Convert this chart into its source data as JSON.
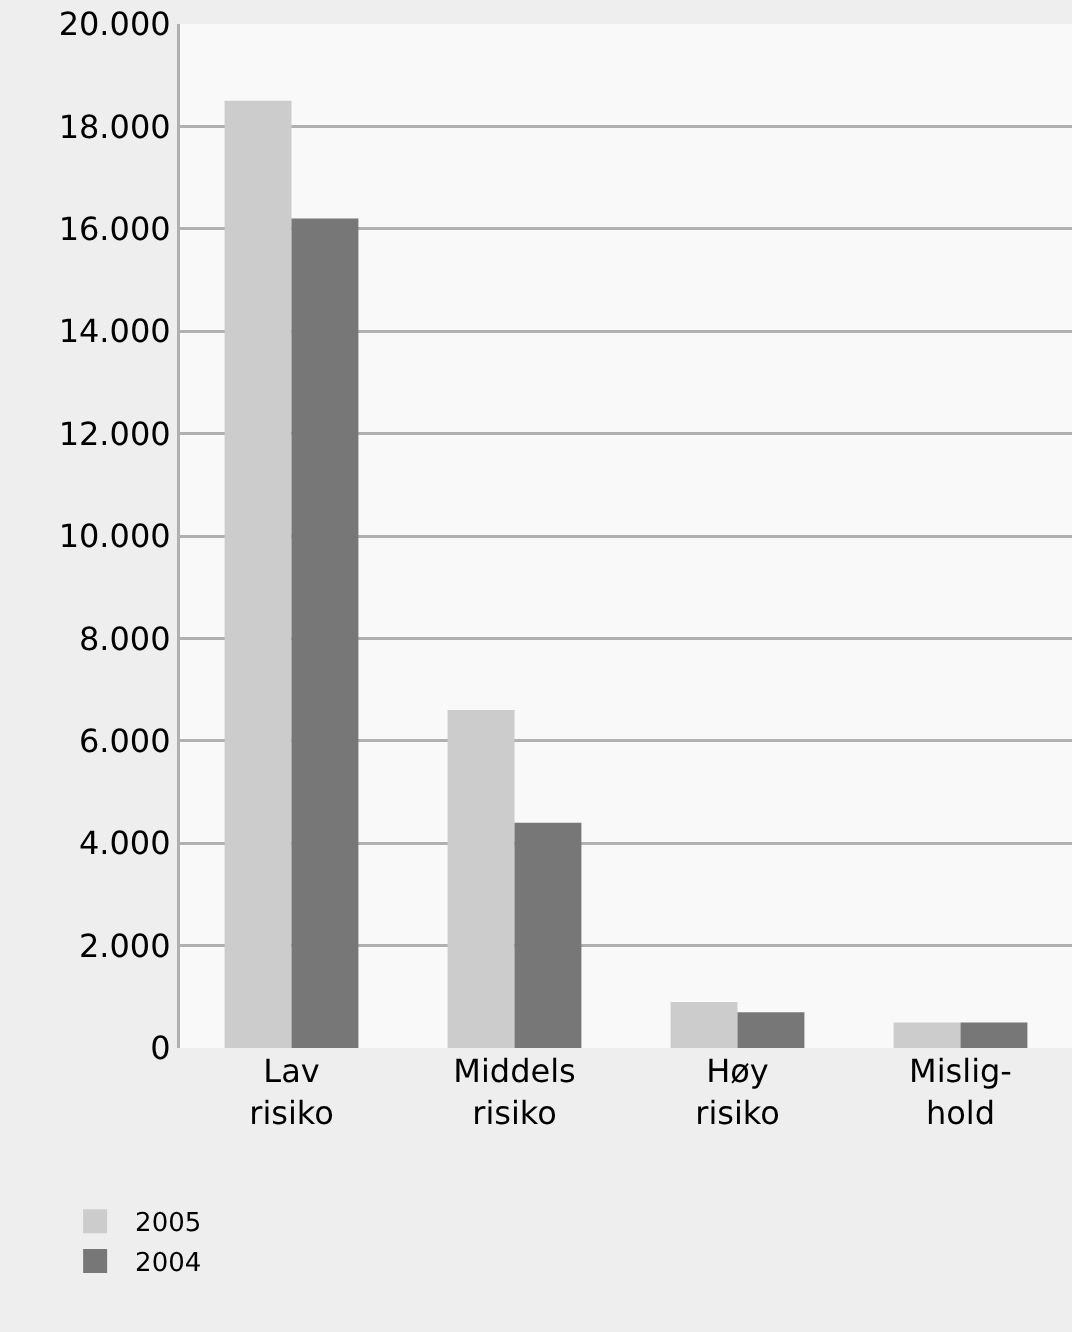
{
  "chart_data": {
    "type": "bar",
    "categories": [
      "Lav\nrisiko",
      "Middels\nrisiko",
      "Høy\nrisiko",
      "Mislig-\nhold"
    ],
    "series": [
      {
        "name": "2005",
        "color": "#cccccc",
        "values": [
          18500,
          6600,
          900,
          500
        ]
      },
      {
        "name": "2004",
        "color": "#777777",
        "values": [
          16200,
          4400,
          700,
          500
        ]
      }
    ],
    "ylim": [
      0,
      20000
    ],
    "yticks": [
      0,
      {
        "value": 2000,
        "label": "2.000"
      },
      {
        "value": 4000,
        "label": "4.000"
      },
      {
        "value": 6000,
        "label": "6.000"
      },
      {
        "value": 8000,
        "label": "8.000"
      },
      {
        "value": 10000,
        "label": "10.000"
      },
      {
        "value": 12000,
        "label": "12.000"
      },
      {
        "value": 14000,
        "label": "14.000"
      },
      {
        "value": 16000,
        "label": "16.000"
      },
      {
        "value": 18000,
        "label": "18.000"
      },
      {
        "value": 20000,
        "label": "20.000"
      }
    ],
    "grid": "y",
    "legend": "bottom left"
  }
}
